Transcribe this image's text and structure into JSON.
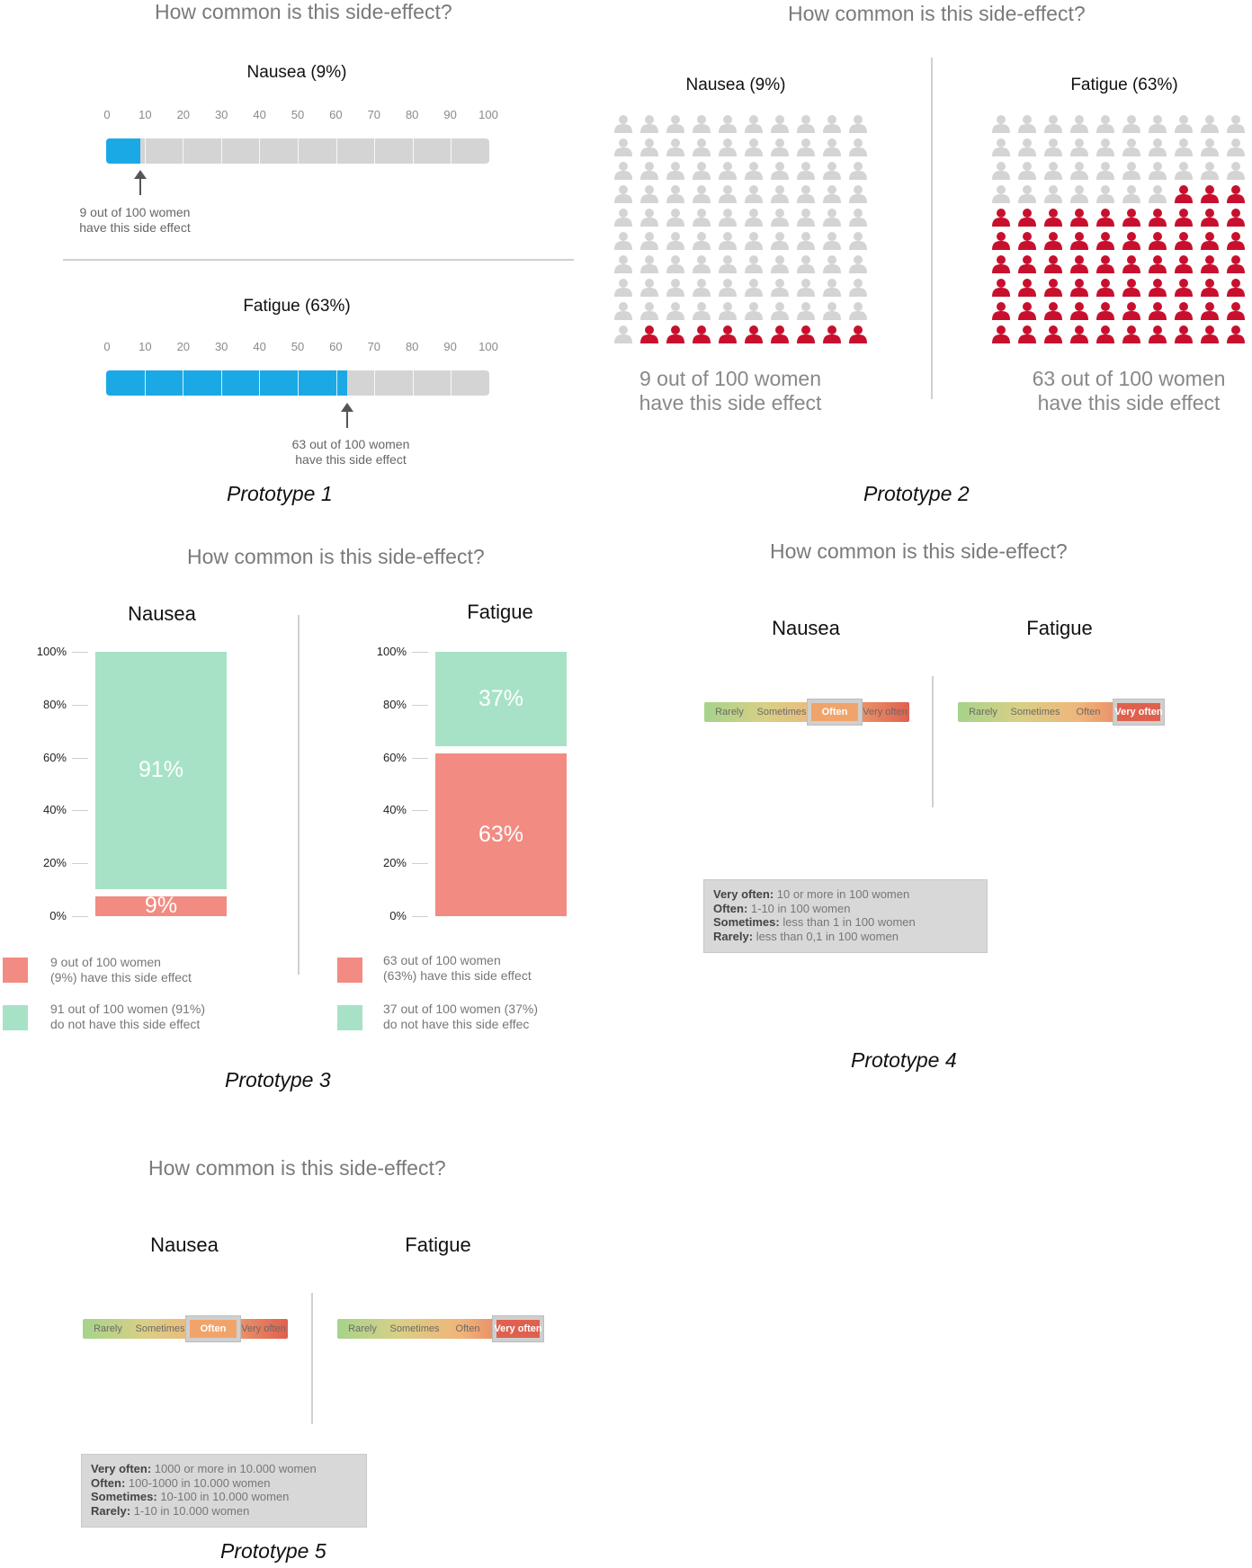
{
  "question": "How common is this side-effect?",
  "prototype1": {
    "label": "Prototype 1",
    "ticks": [
      "0",
      "10",
      "20",
      "30",
      "40",
      "50",
      "60",
      "70",
      "80",
      "90",
      "100"
    ],
    "bars": [
      {
        "title": "Nausea (9%)",
        "percent": 9,
        "note_line1": "9 out of 100 women",
        "note_line2": "have this side effect"
      },
      {
        "title": "Fatigue (63%)",
        "percent": 63,
        "note_line1": "63 out of 100 women",
        "note_line2": "have this side effect"
      }
    ],
    "fill_color": "#1ba9e6"
  },
  "prototype2": {
    "label": "Prototype 2",
    "panels": [
      {
        "title": "Nausea (9%)",
        "affected": 9,
        "note_line1": "9 out of 100 women",
        "note_line2": "have this side effect"
      },
      {
        "title": "Fatigue (63%)",
        "affected": 63,
        "note_line1": "63 out of 100 women",
        "note_line2": "have this side effect"
      }
    ],
    "affected_color": "#c8102e",
    "unaffected_color": "#d4d4d4"
  },
  "prototype3": {
    "label": "Prototype 3",
    "y_ticks": [
      "100%",
      "80%",
      "60%",
      "40%",
      "20%",
      "0%"
    ],
    "panels": [
      {
        "title": "Nausea",
        "affected": 9,
        "not_affected": 91,
        "affected_label": "9%",
        "not_affected_label": "91%",
        "legend_affected_1": "9 out of 100 women",
        "legend_affected_2": "(9%) have this side effect",
        "legend_not_1": "91 out of 100 women (91%)",
        "legend_not_2": "do not have this side effect"
      },
      {
        "title": "Fatigue",
        "affected": 63,
        "not_affected": 37,
        "affected_label": "63%",
        "not_affected_label": "37%",
        "legend_affected_1": "63 out of 100 women",
        "legend_affected_2": "(63%) have this side effect",
        "legend_not_1": "37 out of 100 women (37%)",
        "legend_not_2": "do not have this side effec"
      }
    ],
    "affected_color": "#f28b82",
    "not_affected_color": "#a8e2c6"
  },
  "prototype4": {
    "label": "Prototype 4",
    "scale_labels": [
      "Rarely",
      "Sometimes",
      "Often",
      "Very often"
    ],
    "panels": [
      {
        "title": "Nausea",
        "selected": "Often"
      },
      {
        "title": "Fatigue",
        "selected": "Very often"
      }
    ],
    "key": [
      {
        "term": "Very often:",
        "desc": " 10 or more in 100 women"
      },
      {
        "term": "Often:",
        "desc": " 1-10 in 100 women"
      },
      {
        "term": "Sometimes:",
        "desc": " less than 1 in 100 women"
      },
      {
        "term": "Rarely:",
        "desc": " less than 0,1 in 100 women"
      }
    ]
  },
  "prototype5": {
    "label": "Prototype 5",
    "scale_labels": [
      "Rarely",
      "Sometimes",
      "Often",
      "Very often"
    ],
    "panels": [
      {
        "title": "Nausea",
        "selected": "Often"
      },
      {
        "title": "Fatigue",
        "selected": "Very often"
      }
    ],
    "key": [
      {
        "term": "Very often:",
        "desc": " 1000 or more in 10.000 women"
      },
      {
        "term": "Often:",
        "desc": " 100-1000 in 10.000 women"
      },
      {
        "term": "Sometimes:",
        "desc": " 10-100 in 10.000 women"
      },
      {
        "term": "Rarely:",
        "desc": " 1-10 in 10.000 women"
      }
    ]
  }
}
